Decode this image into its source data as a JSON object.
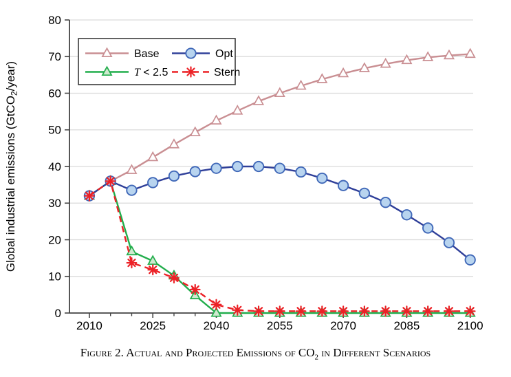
{
  "caption": {
    "prefix": "Figure 2. Actual and Projected Emissions of CO",
    "subscript": "2",
    "suffix": " in Different Scenarios"
  },
  "chart_data": {
    "type": "line",
    "title": "",
    "xlabel": "",
    "ylabel": "Global industrial emissions (GtCO2/year)",
    "ylabel_parts": {
      "prefix": "Global industrial emissions (GtCO",
      "subscript": "2",
      "suffix": "/year)"
    },
    "x": [
      2010,
      2015,
      2020,
      2025,
      2030,
      2035,
      2040,
      2045,
      2050,
      2055,
      2060,
      2065,
      2070,
      2075,
      2080,
      2085,
      2090,
      2095,
      2100
    ],
    "xlim": [
      2005.3,
      2100.7
    ],
    "ylim": [
      0,
      80
    ],
    "x_major_ticks": [
      2010,
      2025,
      2040,
      2055,
      2070,
      2085,
      2100
    ],
    "x_minor_tick_step": 5,
    "y_ticks": [
      0,
      10,
      20,
      30,
      40,
      50,
      60,
      70,
      80
    ],
    "grid": "horizontal-only",
    "legend_position": "upper-left-inside",
    "legend_grid": [
      [
        "Base",
        "Opt"
      ],
      [
        "T < 2.5",
        "Stern"
      ]
    ],
    "axis_color": "#434343",
    "grid_color": "#d9d9d9",
    "series": [
      {
        "name": "Base",
        "marker": "triangle",
        "marker_fill": "#ffffff",
        "line_style": "solid",
        "color": "#c98e92",
        "values": [
          32,
          36,
          39,
          42.5,
          46,
          49.3,
          52.5,
          55.2,
          57.8,
          60,
          62,
          63.8,
          65.4,
          66.8,
          68,
          69,
          69.8,
          70.3,
          70.7
        ]
      },
      {
        "name": "T < 2.5",
        "legend_italic_prefix": "T",
        "legend_rest": " < 2.5",
        "marker": "triangle",
        "marker_fill": "#cfe9cf",
        "line_style": "solid",
        "color": "#21ad4b",
        "values": [
          32,
          36,
          16.8,
          14.2,
          10.2,
          4.8,
          0,
          0,
          0,
          0,
          0,
          0,
          0,
          0,
          0,
          0,
          0,
          0,
          0
        ]
      },
      {
        "name": "Opt",
        "marker": "circle",
        "marker_fill": "#b8d4ef",
        "marker_edge": "#4068b8",
        "line_style": "solid",
        "color": "#2f3f99",
        "values": [
          32,
          36,
          33.5,
          35.6,
          37.4,
          38.6,
          39.5,
          40,
          40,
          39.5,
          38.5,
          36.8,
          34.8,
          32.7,
          30.2,
          26.8,
          23.2,
          19.2,
          14.5
        ]
      },
      {
        "name": "Stern",
        "marker": "asterisk",
        "line_style": "dashed",
        "color": "#ec2227",
        "values": [
          32,
          36,
          13.7,
          11.8,
          9.6,
          6.4,
          2.3,
          0.8,
          0.5,
          0.5,
          0.5,
          0.5,
          0.5,
          0.5,
          0.5,
          0.5,
          0.5,
          0.5,
          0.5
        ]
      }
    ]
  }
}
